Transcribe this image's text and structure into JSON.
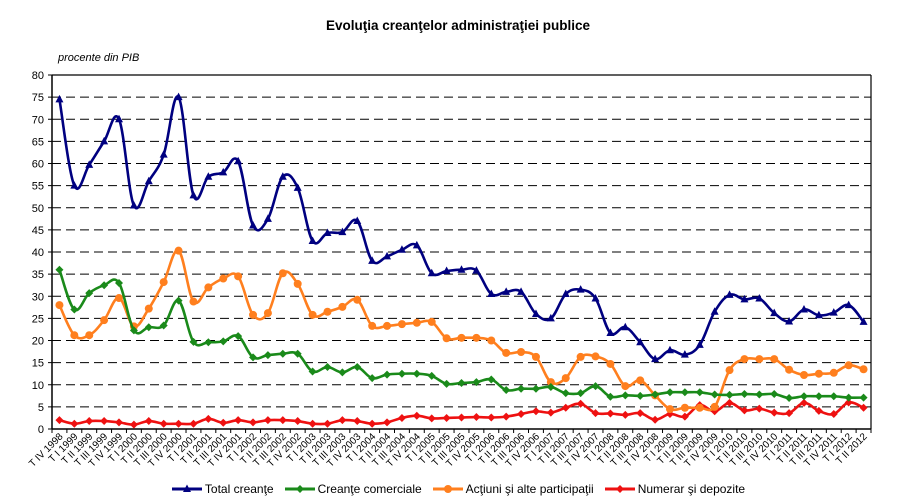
{
  "chart_data": {
    "type": "line",
    "title": "Evoluţia creanţelor administraţiei publice",
    "ylabel": "procente din PIB",
    "xlabel": "",
    "ylim": [
      0,
      80
    ],
    "yticks": [
      0,
      5,
      10,
      15,
      20,
      25,
      30,
      35,
      40,
      45,
      50,
      55,
      60,
      65,
      70,
      75,
      80
    ],
    "grid": "horizontal-dashed",
    "legend_position": "bottom",
    "categories": [
      "T IV 1998",
      "T I 1999",
      "T II 1999",
      "T III 1999",
      "T IV 1999",
      "T I 2000",
      "T II 2000",
      "T III 2000",
      "T IV 2000",
      "T I 2001",
      "T II 2001",
      "T III 2001",
      "T IV 2001",
      "T I 2002",
      "T II 2002",
      "T III 2002",
      "T IV 2002",
      "T I 2003",
      "T II 2003",
      "T III 2003",
      "T IV 2003",
      "T I 2004",
      "T II 2004",
      "T III 2004",
      "T IV 2004",
      "T I 2005",
      "T II 2005",
      "T III 2005",
      "T IV 2005",
      "T I 2006",
      "T II 2006",
      "T III 2006",
      "T IV 2006",
      "T I 2007",
      "T II 2007",
      "T III 2007",
      "T IV 2007",
      "T I 2008",
      "T II 2008",
      "T III 2008",
      "T IV 2008",
      "T I 2009",
      "T II 2009",
      "T III 2009",
      "T IV 2009",
      "T I 2010",
      "T II 2010",
      "T III 2010",
      "T IV 2010",
      "T I 2011",
      "T II 2011",
      "T III 2011",
      "T IV 2011",
      "T I 2012",
      "T II 2012"
    ],
    "series": [
      {
        "name": "Total creanţe",
        "color": "#000080",
        "marker": "triangle",
        "values": [
          74.5,
          55,
          59.7,
          65,
          70,
          50.5,
          56,
          62,
          75,
          52.8,
          57,
          58,
          60.5,
          46,
          47.5,
          57,
          54.5,
          42.5,
          44.3,
          44.5,
          47,
          38,
          39,
          40.5,
          41.5,
          35.2,
          35.7,
          36,
          35.8,
          30.5,
          31,
          31,
          26,
          25,
          30.5,
          31.5,
          29.5,
          21.7,
          23,
          19.6,
          15.8,
          17.8,
          16.8,
          19,
          26.5,
          30.3,
          29.3,
          29.5,
          26.2,
          24.3,
          27,
          25.7,
          26.3,
          28,
          24.2
        ]
      },
      {
        "name": "Creanţe comerciale",
        "color": "#1a8a1a",
        "marker": "diamond",
        "values": [
          36,
          27,
          30.7,
          32.5,
          33,
          22.3,
          23,
          23.4,
          29,
          19.7,
          19.6,
          19.8,
          21,
          16.2,
          16.7,
          17,
          17,
          13,
          14,
          12.8,
          14,
          11.5,
          12.3,
          12.5,
          12.5,
          12,
          10.2,
          10.4,
          10.6,
          11.2,
          8.8,
          9.1,
          9.1,
          9.5,
          8.1,
          8.1,
          9.7,
          7.3,
          7.6,
          7.5,
          7.8,
          8.3,
          8.3,
          8.3,
          7.8,
          7.7,
          7.9,
          7.8,
          7.9,
          7,
          7.4,
          7.4,
          7.4,
          7.1,
          7.1
        ]
      },
      {
        "name": "Acţiuni şi alte participaţii",
        "color": "#ff7f1e",
        "marker": "circle",
        "values": [
          28,
          21.2,
          21.2,
          24.6,
          29.6,
          23.2,
          27.2,
          33.2,
          40.3,
          28.8,
          32,
          34,
          34.5,
          25.8,
          26.2,
          35.2,
          32.8,
          25.8,
          26.5,
          27.6,
          29.2,
          23.3,
          23.3,
          23.7,
          24,
          24.2,
          20.5,
          20.6,
          20.6,
          20,
          17.2,
          17.4,
          16.3,
          10.6,
          11.5,
          16.3,
          16.4,
          14.7,
          9.7,
          11,
          7.6,
          4.5,
          4.8,
          4.8,
          5,
          13.3,
          15.8,
          15.8,
          15.8,
          13.4,
          12.2,
          12.5,
          12.7,
          14.4,
          13.5
        ]
      },
      {
        "name": "Numerar şi depozite",
        "color": "#ee1111",
        "marker": "diamond",
        "values": [
          2,
          1.2,
          1.8,
          1.8,
          1.5,
          1,
          1.8,
          1.2,
          1.2,
          1.2,
          2.3,
          1.4,
          2,
          1.5,
          2,
          2,
          1.8,
          1.2,
          1.2,
          2,
          1.8,
          1.2,
          1.5,
          2.5,
          3,
          2.4,
          2.5,
          2.6,
          2.7,
          2.6,
          2.8,
          3.4,
          4,
          3.7,
          4.8,
          5.7,
          3.6,
          3.5,
          3.2,
          3.6,
          2.1,
          3.4,
          2.8,
          5.4,
          4,
          5.9,
          4.2,
          4.6,
          3.7,
          3.6,
          5.9,
          4.1,
          3.4,
          6,
          4.8
        ]
      }
    ]
  }
}
